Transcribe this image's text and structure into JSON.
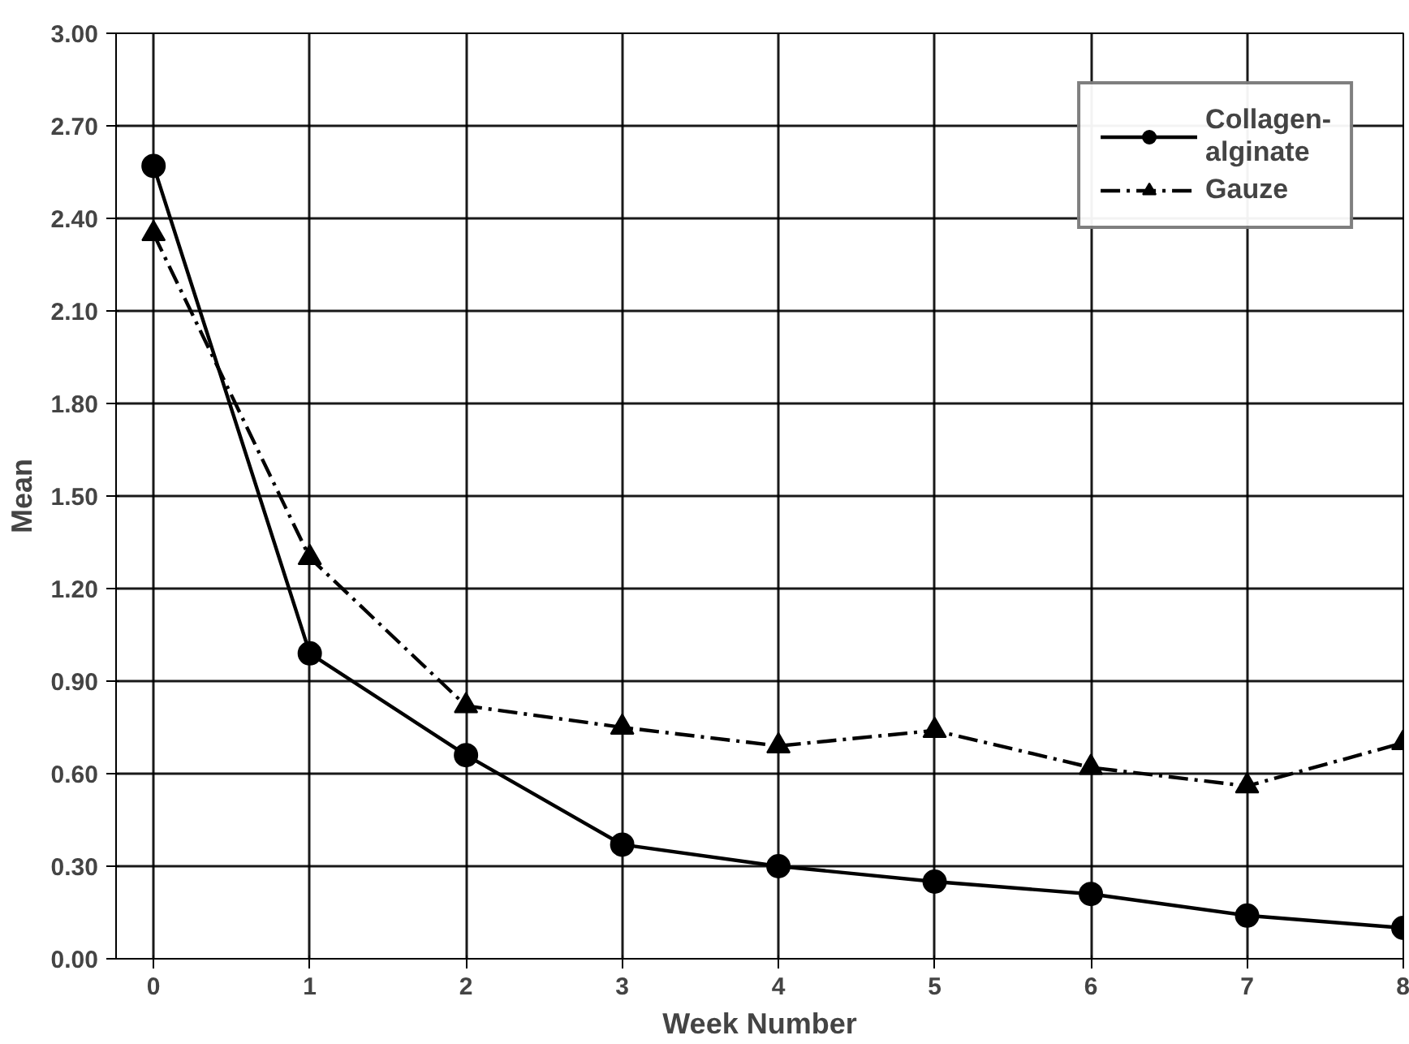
{
  "chart_data": {
    "type": "line",
    "xlabel": "Week Number",
    "ylabel": "Mean",
    "x": [
      0,
      1,
      2,
      3,
      4,
      5,
      6,
      7,
      8
    ],
    "series": [
      {
        "name": "Collagen-\nalginate",
        "color": "#000000",
        "marker": "circle",
        "line_style": "solid",
        "values": [
          2.57,
          0.99,
          0.66,
          0.37,
          0.3,
          0.25,
          0.21,
          0.14,
          0.1
        ]
      },
      {
        "name": "Gauze",
        "color": "#000000",
        "marker": "triangle",
        "line_style": "dashdot",
        "values": [
          2.35,
          1.3,
          0.82,
          0.75,
          0.69,
          0.74,
          0.62,
          0.56,
          0.7
        ]
      }
    ],
    "xlim": [
      -0.24,
      8.0
    ],
    "ylim": [
      0.0,
      3.0
    ],
    "xticks": [
      0,
      1,
      2,
      3,
      4,
      5,
      6,
      7,
      8
    ],
    "yticks": [
      {
        "value": 0,
        "label": "0.00"
      },
      {
        "value": 0.3,
        "label": "0.30"
      },
      {
        "value": 0.6,
        "label": "0.60"
      },
      {
        "value": 0.9,
        "label": "0.90"
      },
      {
        "value": 1.2,
        "label": "1.20"
      },
      {
        "value": 1.5,
        "label": "1.50"
      },
      {
        "value": 1.8,
        "label": "1.80"
      },
      {
        "value": 2.1,
        "label": "2.10"
      },
      {
        "value": 2.4,
        "label": "2.40"
      },
      {
        "value": 2.7,
        "label": "2.70"
      },
      {
        "value": 3.0,
        "label": "3.00"
      }
    ],
    "grid": true,
    "legend": "top right"
  }
}
